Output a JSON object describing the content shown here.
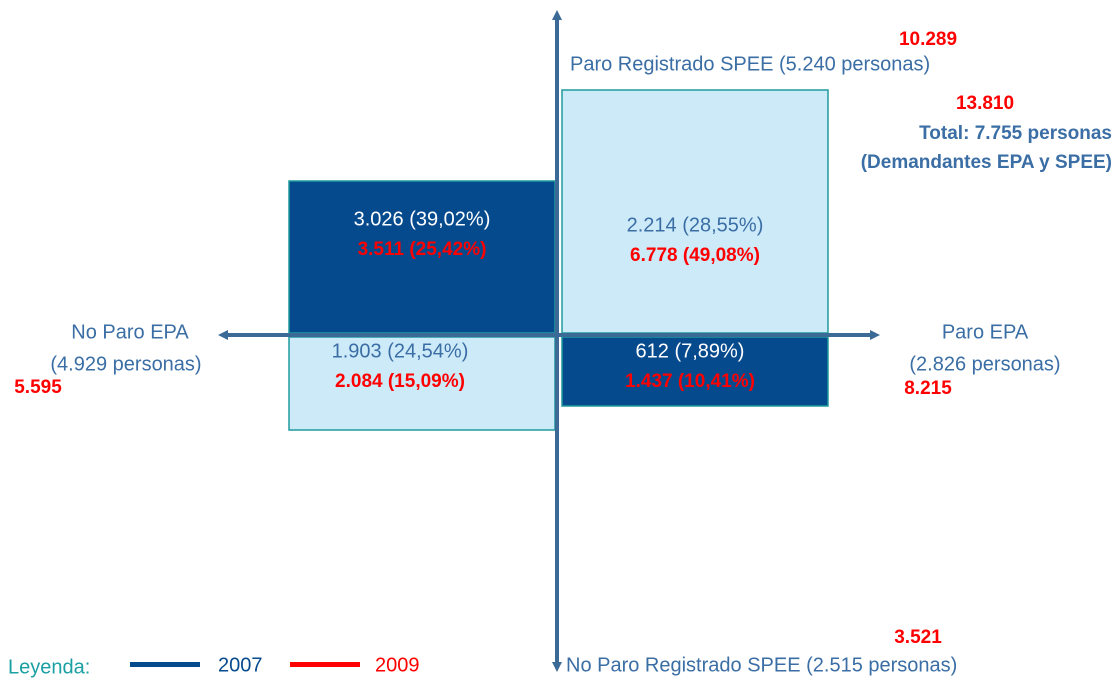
{
  "axes": {
    "top": {
      "label": "Paro Registrado SPEE (5.240 personas)",
      "value_2009": "10.289"
    },
    "bottom": {
      "label": "No Paro Registrado SPEE (2.515 personas)",
      "value_2009": "3.521"
    },
    "left": {
      "label": "No Paro EPA",
      "count": "(4.929 personas)",
      "value_2009": "5.595"
    },
    "right": {
      "label": "Paro EPA",
      "count": "(2.826 personas)",
      "value_2009": "8.215"
    }
  },
  "total": {
    "value_2009": "13.810",
    "label": "Total: 7.755 personas",
    "sublabel": "(Demandantes EPA y SPEE)"
  },
  "quadrants": {
    "top_left": {
      "value_2007": "3.026 (39,02%)",
      "value_2009": "3.511 (25,42%)"
    },
    "top_right": {
      "value_2007": "2.214 (28,55%)",
      "value_2009": "6.778 (49,08%)"
    },
    "bottom_left": {
      "value_2007": "1.903 (24,54%)",
      "value_2009": "2.084 (15,09%)"
    },
    "bottom_right": {
      "value_2007": "612 (7,89%)",
      "value_2009": "1.437 (10,41%)"
    }
  },
  "legend": {
    "title": "Leyenda:",
    "items": [
      "2007",
      "2009"
    ]
  }
}
